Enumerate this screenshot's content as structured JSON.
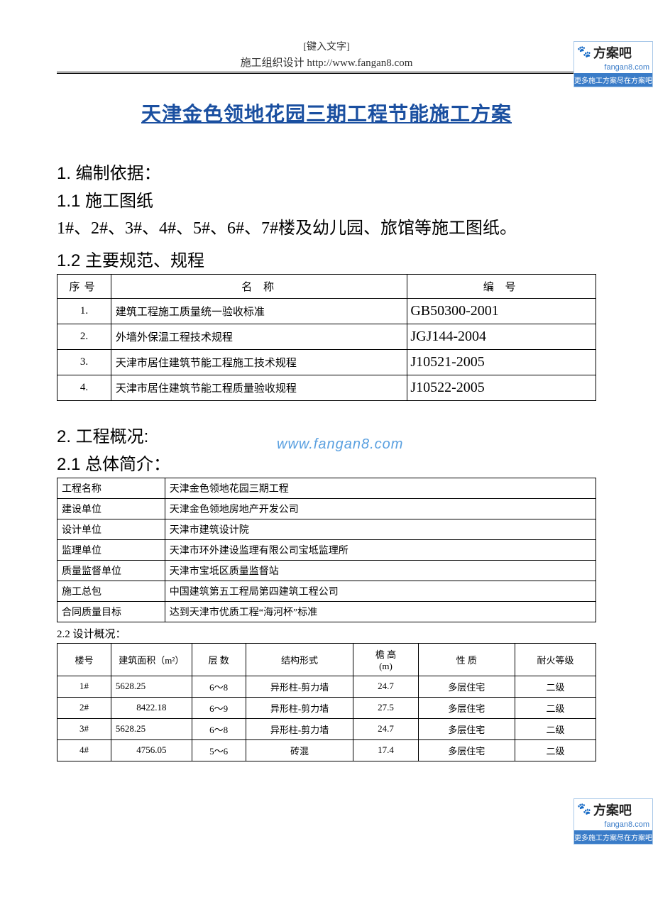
{
  "header": {
    "placeholder": "[键入文字]",
    "line": "施工组织设计  http://www.fangan8.com"
  },
  "logo": {
    "brand": "方案吧",
    "domain": "fangan8.com",
    "tagline": "更多施工方案尽在方案吧"
  },
  "title": "天津金色领地花园三期工程节能施工方案",
  "section1": {
    "heading": "1. 编制依据：",
    "s11_heading": "1.1 施工图纸",
    "s11_body": "1#、2#、3#、4#、5#、6#、7#楼及幼儿园、旅馆等施工图纸。",
    "s12_heading": "1.2 主要规范、规程",
    "spec_table": {
      "columns": [
        "序号",
        "名          称",
        "编    号"
      ],
      "rows": [
        {
          "seq": "1.",
          "name": "建筑工程施工质量统一验收标准",
          "code": "GB50300-2001"
        },
        {
          "seq": "2.",
          "name": "外墙外保温工程技术规程",
          "code": "JGJ144-2004"
        },
        {
          "seq": "3.",
          "name": "天津市居住建筑节能工程施工技术规程",
          "code": "J10521-2005"
        },
        {
          "seq": "4.",
          "name": "天津市居住建筑节能工程质量验收规程",
          "code": "J10522-2005"
        }
      ]
    }
  },
  "section2": {
    "heading": "2. 工程概况:",
    "s21_heading": "2.1 总体简介：",
    "info_table": {
      "rows": [
        {
          "label": "工程名称",
          "value": "天津金色领地花园三期工程"
        },
        {
          "label": "建设单位",
          "value": "天津金色领地房地产开发公司"
        },
        {
          "label": "设计单位",
          "value": "天津市建筑设计院"
        },
        {
          "label": "监理单位",
          "value": "天津市环外建设监理有限公司宝坻监理所"
        },
        {
          "label": "质量监督单位",
          "value": "天津市宝坻区质量监督站"
        },
        {
          "label": "施工总包",
          "value": "中国建筑第五工程局第四建筑工程公司"
        },
        {
          "label": "合同质量目标",
          "value": "达到天津市优质工程“海河杯”标准"
        }
      ]
    },
    "s22_heading": "2.2 设计概况：",
    "design_table": {
      "columns": [
        "楼号",
        "建筑面积（m²）",
        "层 数",
        "结构形式",
        "檐 高\n(m)",
        "性 质",
        "耐火等级"
      ],
      "col_widths": [
        "10%",
        "15%",
        "10%",
        "20%",
        "12%",
        "18%",
        "15%"
      ],
      "rows": [
        {
          "c0": "1#",
          "c1": "5628.25",
          "c2": "6～8",
          "c3": "异形柱-剪力墙",
          "c4": "24.7",
          "c5": "多层住宅",
          "c6": "二级"
        },
        {
          "c0": "2#",
          "c1": "8422.18",
          "c2": "6～9",
          "c3": "异形柱-剪力墙",
          "c4": "27.5",
          "c5": "多层住宅",
          "c6": "二级"
        },
        {
          "c0": "3#",
          "c1": "5628.25",
          "c2": "6～8",
          "c3": "异形柱-剪力墙",
          "c4": "24.7",
          "c5": "多层住宅",
          "c6": "二级"
        },
        {
          "c0": "4#",
          "c1": "4756.05",
          "c2": "5～6",
          "c3": "砖混",
          "c4": "17.4",
          "c5": "多层住宅",
          "c6": "二级"
        }
      ]
    }
  },
  "watermark": "www.fangan8.com"
}
